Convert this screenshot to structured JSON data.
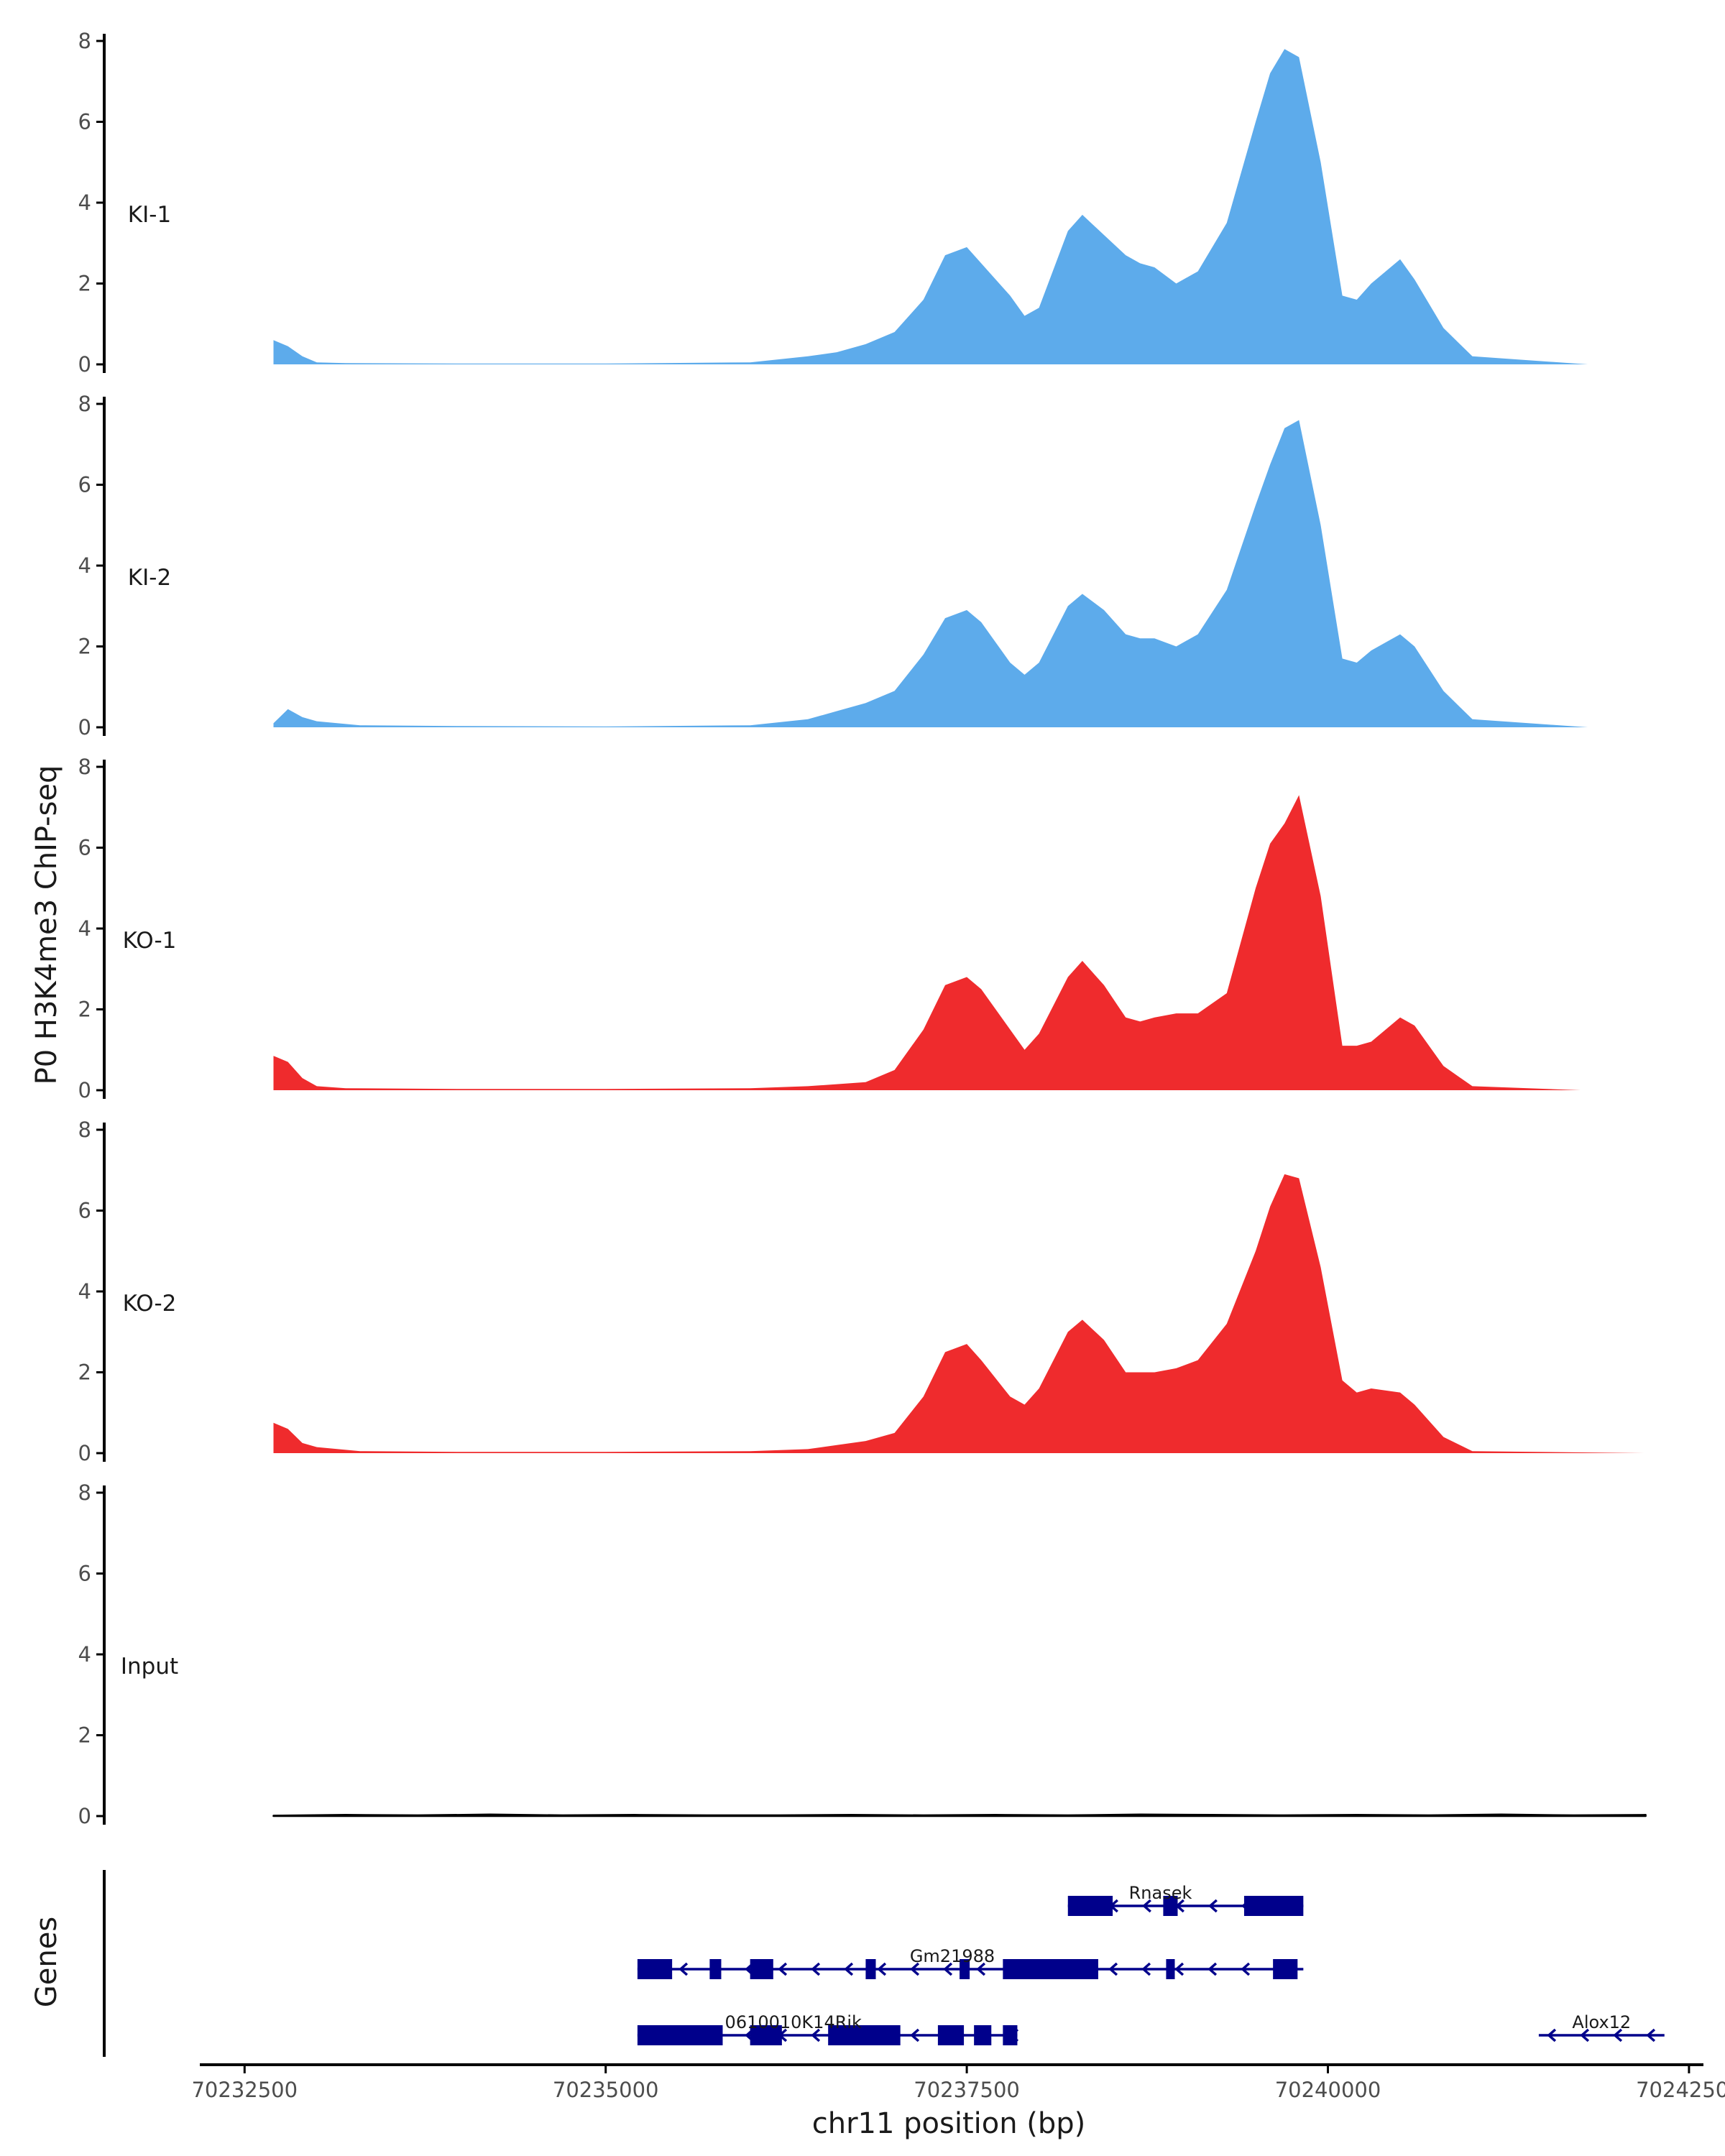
{
  "chart_data": {
    "type": "area",
    "title": "",
    "ylabel": "P0 H3K4me3 ChIP-seq",
    "xlabel": "chr11 position (bp)",
    "genes_label": "Genes",
    "xlim": [
      70232200,
      70242600
    ],
    "ylim": [
      0,
      8
    ],
    "x_ticks": [
      70232500,
      70235000,
      70237500,
      70240000,
      70242500
    ],
    "x_tick_labels": [
      "70232500",
      "70235000",
      "70237500",
      "70240000",
      "70242500"
    ],
    "y_ticks": [
      0,
      2,
      4,
      6,
      8
    ],
    "y_tick_labels": [
      "0",
      "2",
      "4",
      "6",
      "8"
    ],
    "colors": {
      "KI": "#5dabeb",
      "KO": "#ef2b2d",
      "Input": "#000000",
      "gene": "#00008b",
      "axis": "#000000",
      "text": "#1a1a1a",
      "tick": "#4d4d4d"
    },
    "panels": [
      {
        "label": "KI-1",
        "color": "#5dabeb",
        "x": [
          70232700,
          70232800,
          70232900,
          70233000,
          70233200,
          70234000,
          70235000,
          70236000,
          70236400,
          70236600,
          70236800,
          70237000,
          70237200,
          70237350,
          70237500,
          70237600,
          70237800,
          70237900,
          70238000,
          70238200,
          70238300,
          70238450,
          70238600,
          70238700,
          70238800,
          70238950,
          70239100,
          70239300,
          70239500,
          70239600,
          70239700,
          70239800,
          70239950,
          70240100,
          70240200,
          70240300,
          70240500,
          70240600,
          70240800,
          70241000,
          70241800
        ],
        "y": [
          0.6,
          0.45,
          0.2,
          0.05,
          0.03,
          0.02,
          0.02,
          0.05,
          0.2,
          0.3,
          0.5,
          0.8,
          1.6,
          2.7,
          2.9,
          2.5,
          1.7,
          1.2,
          1.4,
          3.3,
          3.7,
          3.2,
          2.7,
          2.5,
          2.4,
          2.0,
          2.3,
          3.5,
          6.0,
          7.2,
          7.8,
          7.6,
          5.0,
          1.7,
          1.6,
          2.0,
          2.6,
          2.1,
          0.9,
          0.2,
          0.0
        ]
      },
      {
        "label": "KI-2",
        "color": "#5dabeb",
        "x": [
          70232700,
          70232800,
          70232900,
          70233000,
          70233300,
          70234000,
          70235000,
          70236000,
          70236400,
          70236600,
          70236800,
          70237000,
          70237200,
          70237350,
          70237500,
          70237600,
          70237800,
          70237900,
          70238000,
          70238200,
          70238300,
          70238450,
          70238600,
          70238700,
          70238800,
          70238950,
          70239100,
          70239300,
          70239500,
          70239600,
          70239700,
          70239800,
          70239950,
          70240100,
          70240200,
          70240300,
          70240500,
          70240600,
          70240800,
          70241000,
          70241800
        ],
        "y": [
          0.1,
          0.45,
          0.25,
          0.15,
          0.05,
          0.03,
          0.02,
          0.05,
          0.2,
          0.4,
          0.6,
          0.9,
          1.8,
          2.7,
          2.9,
          2.6,
          1.6,
          1.3,
          1.6,
          3.0,
          3.3,
          2.9,
          2.3,
          2.2,
          2.2,
          2.0,
          2.3,
          3.4,
          5.5,
          6.5,
          7.4,
          7.6,
          5.0,
          1.7,
          1.6,
          1.9,
          2.3,
          2.0,
          0.9,
          0.2,
          0.0
        ]
      },
      {
        "label": "KO-1",
        "color": "#ef2b2d",
        "x": [
          70232700,
          70232800,
          70232900,
          70233000,
          70233200,
          70234000,
          70235000,
          70236000,
          70236400,
          70236600,
          70236800,
          70237000,
          70237200,
          70237350,
          70237500,
          70237600,
          70237800,
          70237900,
          70238000,
          70238200,
          70238300,
          70238450,
          70238600,
          70238700,
          70238800,
          70238950,
          70239100,
          70239300,
          70239500,
          70239600,
          70239700,
          70239800,
          70239950,
          70240100,
          70240200,
          70240300,
          70240500,
          70240600,
          70240800,
          70241000,
          70241750
        ],
        "y": [
          0.85,
          0.7,
          0.3,
          0.1,
          0.05,
          0.03,
          0.03,
          0.05,
          0.1,
          0.15,
          0.2,
          0.5,
          1.5,
          2.6,
          2.8,
          2.5,
          1.5,
          1.0,
          1.4,
          2.8,
          3.2,
          2.6,
          1.8,
          1.7,
          1.8,
          1.9,
          1.9,
          2.4,
          5.0,
          6.1,
          6.6,
          7.3,
          4.8,
          1.1,
          1.1,
          1.2,
          1.8,
          1.6,
          0.6,
          0.1,
          0.0
        ]
      },
      {
        "label": "KO-2",
        "color": "#ef2b2d",
        "x": [
          70232700,
          70232800,
          70232900,
          70233000,
          70233300,
          70234000,
          70235000,
          70236000,
          70236400,
          70236600,
          70236800,
          70237000,
          70237200,
          70237350,
          70237500,
          70237600,
          70237800,
          70237900,
          70238000,
          70238200,
          70238300,
          70238450,
          70238600,
          70238700,
          70238800,
          70238950,
          70239100,
          70239300,
          70239500,
          70239600,
          70239700,
          70239800,
          70239950,
          70240100,
          70240200,
          70240300,
          70240500,
          70240600,
          70240800,
          70241000,
          70242200
        ],
        "y": [
          0.75,
          0.6,
          0.25,
          0.15,
          0.05,
          0.03,
          0.03,
          0.05,
          0.1,
          0.2,
          0.3,
          0.5,
          1.4,
          2.5,
          2.7,
          2.3,
          1.4,
          1.2,
          1.6,
          3.0,
          3.3,
          2.8,
          2.0,
          2.0,
          2.0,
          2.1,
          2.3,
          3.2,
          5.0,
          6.1,
          6.9,
          6.8,
          4.6,
          1.8,
          1.5,
          1.6,
          1.5,
          1.2,
          0.4,
          0.05,
          0.0
        ]
      },
      {
        "label": "Input",
        "color": "#000000",
        "x": [
          70232700,
          70233200,
          70233700,
          70234200,
          70234700,
          70235200,
          70235700,
          70236200,
          70236700,
          70237200,
          70237700,
          70238200,
          70238700,
          70239200,
          70239700,
          70240200,
          70240700,
          70241200,
          70241700,
          70242200
        ],
        "y": [
          0.01,
          0.03,
          0.02,
          0.04,
          0.02,
          0.03,
          0.02,
          0.02,
          0.03,
          0.02,
          0.03,
          0.02,
          0.04,
          0.03,
          0.02,
          0.03,
          0.02,
          0.04,
          0.02,
          0.03
        ]
      }
    ],
    "genes": [
      {
        "name": "Rnasek",
        "strand": "-",
        "start": 70238200,
        "end": 70239830,
        "exons": [
          [
            70238200,
            70238510
          ],
          [
            70238860,
            70238960
          ],
          [
            70239420,
            70239830
          ]
        ]
      },
      {
        "name": "Gm21988",
        "strand": "-",
        "start": 70235220,
        "end": 70239830,
        "exons": [
          [
            70235220,
            70235460
          ],
          [
            70235720,
            70235800
          ],
          [
            70236000,
            70236160
          ],
          [
            70236800,
            70236870
          ],
          [
            70237450,
            70237520
          ],
          [
            70237750,
            70238410
          ],
          [
            70238880,
            70238940
          ],
          [
            70239620,
            70239790
          ]
        ]
      },
      {
        "name": "0610010K14Rik",
        "strand": "-",
        "start": 70235220,
        "end": 70237850,
        "exons": [
          [
            70235220,
            70235810
          ],
          [
            70236000,
            70236220
          ],
          [
            70236540,
            70237040
          ],
          [
            70237300,
            70237480
          ],
          [
            70237550,
            70237670
          ],
          [
            70237750,
            70237850
          ]
        ]
      },
      {
        "name": "Alox12",
        "strand": "-",
        "start": 70241460,
        "end": 70242330,
        "exons": []
      }
    ]
  }
}
